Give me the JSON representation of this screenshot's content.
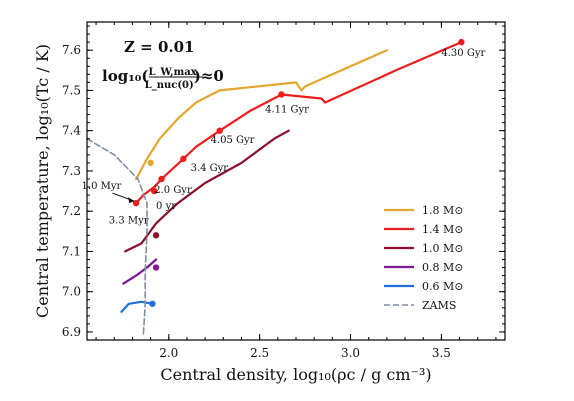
{
  "chart_data": {
    "type": "line",
    "xlabel": "Central density, log₁₀(ρc / g cm⁻³)",
    "ylabel": "Central temperature, log₁₀(Tc / K)",
    "xlim": [
      1.55,
      3.85
    ],
    "ylim": [
      6.88,
      7.67
    ],
    "xticks": [
      "2.0",
      "2.5",
      "3.0",
      "3.5"
    ],
    "yticks": [
      "6.9",
      "7.0",
      "7.1",
      "7.2",
      "7.3",
      "7.4",
      "7.5",
      "7.6"
    ],
    "note": {
      "line1": "Z = 0.01",
      "line2_prefix": "log₁₀(",
      "line2_num": "L_W,max",
      "line2_den": "L_nuc(0)",
      "line2_suffix": ")≈0"
    },
    "series": [
      {
        "name": "1.8 M⊙",
        "color": "#e3a72f",
        "points": [
          [
            1.82,
            7.28
          ],
          [
            1.88,
            7.33
          ],
          [
            1.95,
            7.38
          ],
          [
            2.05,
            7.43
          ],
          [
            2.15,
            7.47
          ],
          [
            2.28,
            7.5
          ],
          [
            2.7,
            7.52
          ],
          [
            2.73,
            7.5
          ],
          [
            2.75,
            7.51
          ],
          [
            3.2,
            7.6
          ]
        ],
        "markers": [
          [
            1.9,
            7.32
          ]
        ]
      },
      {
        "name": "1.4 M⊙",
        "color": "#ee1d1d",
        "points": [
          [
            1.82,
            7.22
          ],
          [
            1.86,
            7.24
          ],
          [
            1.92,
            7.26
          ],
          [
            1.96,
            7.28
          ],
          [
            2.08,
            7.33
          ],
          [
            2.15,
            7.36
          ],
          [
            2.28,
            7.4
          ],
          [
            2.45,
            7.45
          ],
          [
            2.62,
            7.49
          ],
          [
            2.84,
            7.48
          ],
          [
            2.86,
            7.47
          ],
          [
            3.25,
            7.55
          ],
          [
            3.61,
            7.62
          ]
        ],
        "markers": [
          [
            1.82,
            7.22
          ],
          [
            1.92,
            7.25
          ],
          [
            1.96,
            7.28
          ],
          [
            2.08,
            7.33
          ],
          [
            2.28,
            7.4
          ],
          [
            2.62,
            7.49
          ],
          [
            3.61,
            7.62
          ]
        ]
      },
      {
        "name": "1.0 M⊙",
        "color": "#8a0f2c",
        "points": [
          [
            1.76,
            7.1
          ],
          [
            1.85,
            7.12
          ],
          [
            1.93,
            7.17
          ],
          [
            2.05,
            7.22
          ],
          [
            2.2,
            7.27
          ],
          [
            2.4,
            7.32
          ],
          [
            2.58,
            7.38
          ],
          [
            2.66,
            7.4
          ]
        ],
        "markers": [
          [
            1.93,
            7.14
          ]
        ]
      },
      {
        "name": "0.8 M⊙",
        "color": "#7d1595",
        "points": [
          [
            1.75,
            7.02
          ],
          [
            1.82,
            7.04
          ],
          [
            1.88,
            7.06
          ],
          [
            1.93,
            7.08
          ]
        ],
        "markers": [
          [
            1.93,
            7.06
          ]
        ]
      },
      {
        "name": "0.6 M⊙",
        "color": "#1f6fde",
        "points": [
          [
            1.74,
            6.95
          ],
          [
            1.78,
            6.97
          ],
          [
            1.85,
            6.975
          ],
          [
            1.91,
            6.97
          ]
        ],
        "markers": [
          [
            1.91,
            6.97
          ]
        ]
      },
      {
        "name": "ZAMS",
        "color": "#7e8ea4",
        "dashed": true,
        "points": [
          [
            1.55,
            7.38
          ],
          [
            1.7,
            7.34
          ],
          [
            1.83,
            7.28
          ],
          [
            1.88,
            7.22
          ],
          [
            1.88,
            7.15
          ],
          [
            1.87,
            7.05
          ],
          [
            1.87,
            6.97
          ],
          [
            1.86,
            6.89
          ]
        ]
      }
    ],
    "annotations": [
      {
        "text": "4.30 Gyr",
        "x": 3.5,
        "y": 7.585
      },
      {
        "text": "4.11 Gyr",
        "x": 2.53,
        "y": 7.445
      },
      {
        "text": "4.05 Gyr",
        "x": 2.23,
        "y": 7.37
      },
      {
        "text": "3.4 Gyr",
        "x": 2.12,
        "y": 7.3
      },
      {
        "text": "2.0 Gyr",
        "x": 1.92,
        "y": 7.245
      },
      {
        "text": "0 yr",
        "x": 1.93,
        "y": 7.205
      },
      {
        "text": "1.0 Myr",
        "x": 1.52,
        "y": 7.255
      },
      {
        "text": "3.3 Myr",
        "x": 1.67,
        "y": 7.17
      }
    ],
    "legend_position": "bottom-right"
  }
}
